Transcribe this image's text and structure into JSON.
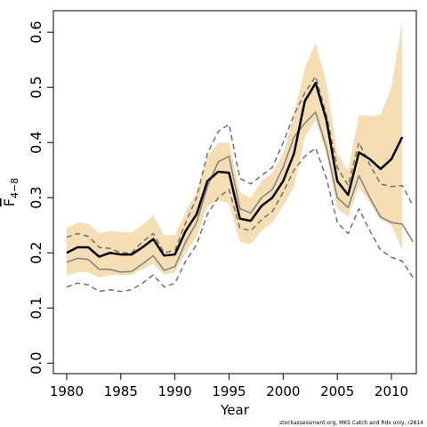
{
  "chart_data": {
    "type": "line",
    "xlabel": "Year",
    "ylabel": "F",
    "ylabel_subscript": "4−8",
    "footnote": "stockassessment.org, MKS Catch and Rdx only, r2814",
    "x": [
      1980,
      1981,
      1982,
      1983,
      1984,
      1985,
      1986,
      1987,
      1988,
      1989,
      1990,
      1991,
      1992,
      1993,
      1994,
      1995,
      1996,
      1997,
      1998,
      1999,
      2000,
      2001,
      2002,
      2003,
      2004,
      2005,
      2006,
      2007,
      2008,
      2009,
      2010,
      2011,
      2012
    ],
    "xlim": [
      1978.77,
      2012.3
    ],
    "xticks": [
      1980,
      1985,
      1990,
      1995,
      2000,
      2005,
      2010
    ],
    "ylim": [
      -0.019,
      0.639
    ],
    "yticks": [
      {
        "value": 0,
        "label": "0.0"
      },
      0.1,
      0.2,
      0.3,
      0.4,
      0.5,
      0.6
    ],
    "band": {
      "color": "#f5deb3",
      "lower": [
        0.158,
        0.165,
        0.165,
        0.155,
        0.16,
        0.16,
        0.16,
        0.17,
        0.18,
        0.16,
        0.165,
        0.2,
        0.23,
        0.285,
        0.295,
        0.29,
        0.22,
        0.215,
        0.24,
        0.255,
        0.285,
        0.32,
        0.41,
        0.44,
        0.38,
        0.28,
        0.265,
        0.32,
        0.29,
        0.26,
        0.25,
        0.205,
        null
      ],
      "upper": [
        0.245,
        0.255,
        0.253,
        0.235,
        0.24,
        0.238,
        0.237,
        0.25,
        0.268,
        0.232,
        0.232,
        0.275,
        0.31,
        0.375,
        0.4,
        0.4,
        0.31,
        0.3,
        0.33,
        0.345,
        0.38,
        0.45,
        0.535,
        0.58,
        0.51,
        0.38,
        0.35,
        0.45,
        0.448,
        0.45,
        0.5,
        0.62,
        null
      ]
    },
    "lines": [
      {
        "color": "#808080",
        "dash": false,
        "width": 1.5,
        "values": [
          0.183,
          0.19,
          0.188,
          0.17,
          0.17,
          0.165,
          0.166,
          0.18,
          0.195,
          0.168,
          0.175,
          0.22,
          0.255,
          0.32,
          0.365,
          0.375,
          0.28,
          0.272,
          0.3,
          0.315,
          0.355,
          0.41,
          0.435,
          0.455,
          0.39,
          0.3,
          0.282,
          0.34,
          0.3,
          0.265,
          0.255,
          0.252,
          0.22
        ]
      },
      {
        "color": "#707070",
        "dash": true,
        "width": 1.5,
        "values": [
          0.228,
          0.235,
          0.23,
          0.21,
          0.208,
          0.2,
          0.2,
          0.22,
          0.235,
          0.2,
          0.205,
          0.255,
          0.3,
          0.38,
          0.42,
          0.433,
          0.335,
          0.325,
          0.34,
          0.355,
          0.4,
          0.45,
          0.49,
          0.52,
          0.45,
          0.355,
          0.322,
          0.4,
          0.36,
          0.325,
          0.32,
          0.322,
          0.285
        ]
      },
      {
        "color": "#707070",
        "dash": true,
        "width": 1.5,
        "values": [
          0.138,
          0.145,
          0.142,
          0.13,
          0.133,
          0.13,
          0.133,
          0.145,
          0.16,
          0.138,
          0.145,
          0.185,
          0.215,
          0.27,
          0.3,
          0.315,
          0.245,
          0.24,
          0.26,
          0.275,
          0.31,
          0.35,
          0.375,
          0.39,
          0.335,
          0.255,
          0.235,
          0.28,
          0.24,
          0.205,
          0.192,
          0.185,
          0.155
        ]
      },
      {
        "color": "#000000",
        "dash": false,
        "width": 2.5,
        "values": [
          0.2,
          0.21,
          0.21,
          0.193,
          0.2,
          0.197,
          0.197,
          0.21,
          0.225,
          0.195,
          0.197,
          0.24,
          0.27,
          0.33,
          0.347,
          0.345,
          0.262,
          0.258,
          0.285,
          0.3,
          0.33,
          0.38,
          0.475,
          0.508,
          0.44,
          0.33,
          0.305,
          0.382,
          0.37,
          0.352,
          0.37,
          0.41,
          null
        ]
      }
    ]
  }
}
